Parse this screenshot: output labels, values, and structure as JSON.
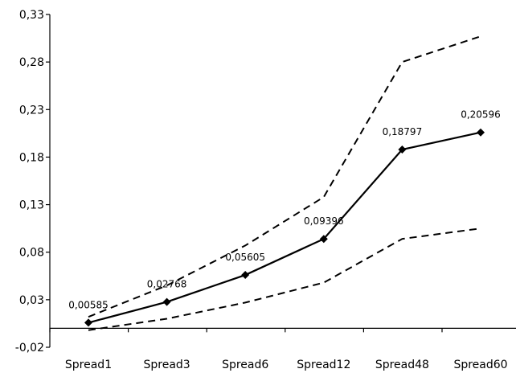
{
  "chart_data": {
    "type": "line",
    "title": "",
    "xlabel": "",
    "ylabel": "",
    "categories": [
      "Spread1",
      "Spread3",
      "Spread6",
      "Spread12",
      "Spread48",
      "Spread60"
    ],
    "ylim": [
      -0.02,
      0.33
    ],
    "yticks": [
      -0.02,
      0.03,
      0.08,
      0.13,
      0.18,
      0.23,
      0.28,
      0.33
    ],
    "ytick_labels": [
      "-0,02",
      "0,03",
      "0,08",
      "0,13",
      "0,18",
      "0,23",
      "0,28",
      "0,33"
    ],
    "grid": false,
    "legend": "none",
    "series": [
      {
        "style": "solid",
        "marker": "diamond",
        "color": "#000000",
        "values": [
          0.00585,
          0.02768,
          0.05605,
          0.09396,
          0.18797,
          0.20596
        ],
        "labels": [
          "0,00585",
          "0,02768",
          "0,05605",
          "0,09396",
          "0,18797",
          "0,20596"
        ]
      },
      {
        "style": "dashed",
        "color": "#000000",
        "values": [
          0.012,
          0.045,
          0.087,
          0.138,
          0.28,
          0.307
        ]
      },
      {
        "style": "dashed",
        "color": "#000000",
        "values": [
          -0.002,
          0.01,
          0.027,
          0.048,
          0.094,
          0.105
        ]
      }
    ]
  }
}
